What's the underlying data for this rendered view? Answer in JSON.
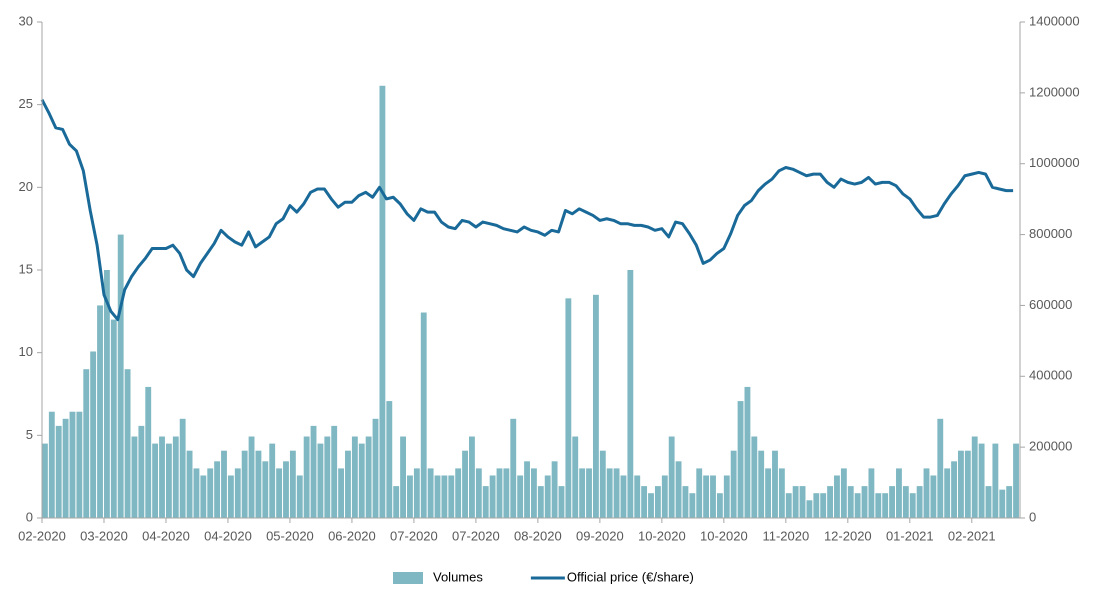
{
  "chart_data": {
    "type": "bar",
    "categories": [
      "02-2020",
      null,
      null,
      null,
      null,
      null,
      null,
      null,
      null,
      "03-2020",
      null,
      null,
      null,
      null,
      null,
      null,
      null,
      null,
      "04-2020",
      null,
      null,
      null,
      null,
      null,
      null,
      null,
      null,
      "04-2020",
      null,
      null,
      null,
      null,
      null,
      null,
      null,
      null,
      "05-2020",
      null,
      null,
      null,
      null,
      null,
      null,
      null,
      null,
      "06-2020",
      null,
      null,
      null,
      null,
      null,
      null,
      null,
      null,
      "07-2020",
      null,
      null,
      null,
      null,
      null,
      null,
      null,
      null,
      "07-2020",
      null,
      null,
      null,
      null,
      null,
      null,
      null,
      null,
      "08-2020",
      null,
      null,
      null,
      null,
      null,
      null,
      null,
      null,
      "09-2020",
      null,
      null,
      null,
      null,
      null,
      null,
      null,
      null,
      "10-2020",
      null,
      null,
      null,
      null,
      null,
      null,
      null,
      null,
      "10-2020",
      null,
      null,
      null,
      null,
      null,
      null,
      null,
      null,
      "11-2020",
      null,
      null,
      null,
      null,
      null,
      null,
      null,
      null,
      "12-2020",
      null,
      null,
      null,
      null,
      null,
      null,
      null,
      null,
      "01-2021",
      null,
      null,
      null,
      null,
      null,
      null,
      null,
      null,
      "02-2021",
      null,
      null,
      null,
      null,
      null,
      null
    ],
    "series": [
      {
        "name": "Volumes",
        "type": "bar",
        "axis": "y2",
        "color": "#7fb8c2",
        "values": [
          210000,
          300000,
          260000,
          280000,
          300000,
          300000,
          420000,
          470000,
          600000,
          700000,
          560000,
          800000,
          420000,
          230000,
          260000,
          370000,
          210000,
          230000,
          210000,
          230000,
          280000,
          190000,
          140000,
          120000,
          140000,
          160000,
          190000,
          120000,
          140000,
          190000,
          230000,
          190000,
          160000,
          210000,
          140000,
          160000,
          190000,
          120000,
          230000,
          260000,
          210000,
          230000,
          260000,
          140000,
          190000,
          230000,
          210000,
          230000,
          280000,
          1220000,
          330000,
          90000,
          230000,
          120000,
          140000,
          580000,
          140000,
          120000,
          120000,
          120000,
          140000,
          190000,
          230000,
          140000,
          90000,
          120000,
          140000,
          140000,
          280000,
          120000,
          160000,
          140000,
          90000,
          120000,
          160000,
          90000,
          620000,
          230000,
          140000,
          140000,
          630000,
          190000,
          140000,
          140000,
          120000,
          700000,
          120000,
          90000,
          70000,
          90000,
          120000,
          230000,
          160000,
          90000,
          70000,
          140000,
          120000,
          120000,
          70000,
          120000,
          190000,
          330000,
          370000,
          230000,
          190000,
          140000,
          190000,
          140000,
          70000,
          90000,
          90000,
          50000,
          70000,
          70000,
          90000,
          120000,
          140000,
          90000,
          70000,
          90000,
          140000,
          70000,
          70000,
          90000,
          140000,
          90000,
          70000,
          90000,
          140000,
          120000,
          280000,
          140000,
          160000,
          190000,
          190000,
          230000,
          210000,
          90000,
          210000,
          80000,
          90000,
          210000
        ]
      },
      {
        "name": "Official price (€/share)",
        "type": "line",
        "axis": "y",
        "color": "#1a6a99",
        "values": [
          25.3,
          24.5,
          23.6,
          23.5,
          22.6,
          22.2,
          21.0,
          18.6,
          16.5,
          13.5,
          12.5,
          12.0,
          13.8,
          14.6,
          15.2,
          15.7,
          16.3,
          16.3,
          16.3,
          16.5,
          16.0,
          15.0,
          14.6,
          15.4,
          16.0,
          16.6,
          17.4,
          17.0,
          16.7,
          16.5,
          17.3,
          16.4,
          16.7,
          17.0,
          17.8,
          18.1,
          18.9,
          18.5,
          19.0,
          19.7,
          19.9,
          19.9,
          19.3,
          18.8,
          19.1,
          19.1,
          19.5,
          19.7,
          19.4,
          20.0,
          19.3,
          19.4,
          19.0,
          18.4,
          18.0,
          18.7,
          18.5,
          18.5,
          17.9,
          17.6,
          17.5,
          18.0,
          17.9,
          17.6,
          17.9,
          17.8,
          17.7,
          17.5,
          17.4,
          17.3,
          17.6,
          17.4,
          17.3,
          17.1,
          17.4,
          17.3,
          18.6,
          18.4,
          18.7,
          18.5,
          18.3,
          18.0,
          18.1,
          18.0,
          17.8,
          17.8,
          17.7,
          17.7,
          17.6,
          17.4,
          17.5,
          17.0,
          17.9,
          17.8,
          17.2,
          16.5,
          15.4,
          15.6,
          16.0,
          16.3,
          17.2,
          18.3,
          18.9,
          19.2,
          19.8,
          20.2,
          20.5,
          21.0,
          21.2,
          21.1,
          20.9,
          20.7,
          20.8,
          20.8,
          20.3,
          20.0,
          20.5,
          20.3,
          20.2,
          20.3,
          20.6,
          20.2,
          20.3,
          20.3,
          20.1,
          19.6,
          19.3,
          18.7,
          18.2,
          18.2,
          18.3,
          19.0,
          19.6,
          20.1,
          20.7,
          20.8,
          20.9,
          20.8,
          20.0,
          19.9,
          19.8,
          19.8
        ]
      }
    ],
    "ylim": [
      0,
      30
    ],
    "yticks": [
      0,
      5,
      10,
      15,
      20,
      25,
      30
    ],
    "y2lim": [
      0,
      1400000
    ],
    "y2ticks": [
      0,
      200000,
      400000,
      600000,
      800000,
      1000000,
      1200000,
      1400000
    ],
    "grid": false,
    "legend": "bottom"
  }
}
